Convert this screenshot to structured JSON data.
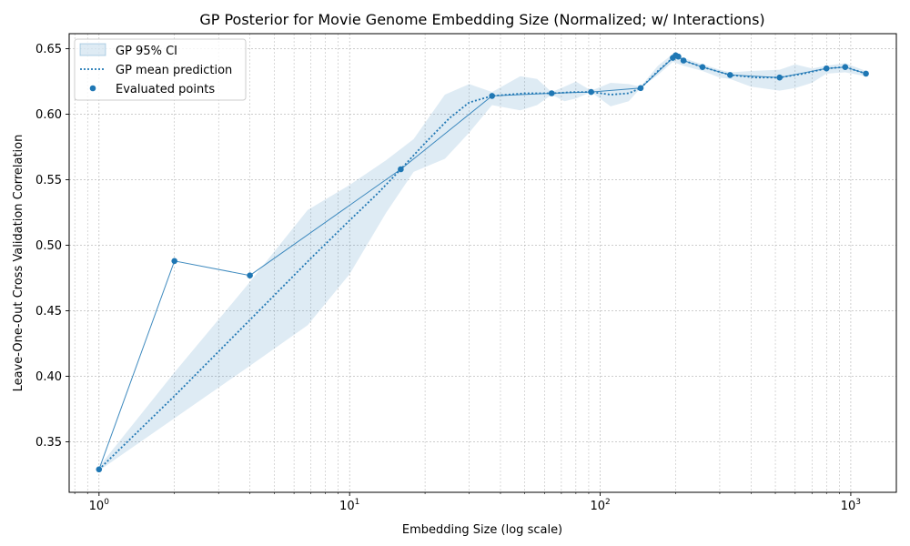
{
  "chart_data": {
    "type": "line",
    "title": "GP Posterior for Movie Genome Embedding Size (Normalized; w/ Interactions)",
    "xlabel": "Embedding Size (log scale)",
    "ylabel": "Leave-One-Out Cross Validation Correlation",
    "xscale": "log",
    "xlim": [
      0.76,
      1520
    ],
    "ylim": [
      0.3115,
      0.6615
    ],
    "x_major_ticks": [
      1,
      10,
      100,
      1000
    ],
    "x_tick_labels": [
      {
        "base": "10",
        "exp": "0"
      },
      {
        "base": "10",
        "exp": "1"
      },
      {
        "base": "10",
        "exp": "2"
      },
      {
        "base": "10",
        "exp": "3"
      }
    ],
    "y_ticks": [
      0.35,
      0.4,
      0.45,
      0.5,
      0.55,
      0.6,
      0.65
    ],
    "y_tick_labels": [
      "0.35",
      "0.40",
      "0.45",
      "0.50",
      "0.55",
      "0.60",
      "0.65"
    ],
    "grid": true,
    "legend_position": "top-left",
    "legend": {
      "ci": "GP 95% CI",
      "mean": "GP mean prediction",
      "points": "Evaluated points"
    },
    "colors": {
      "series": "#1f77b4",
      "ci_fill": "#1f77b4",
      "grid": "#b0b0b0"
    },
    "evaluated_points": {
      "x": [
        1,
        2,
        4,
        16,
        37,
        64,
        92,
        145,
        195,
        200,
        205,
        215,
        256,
        330,
        520,
        800,
        950,
        1150
      ],
      "y": [
        0.329,
        0.488,
        0.477,
        0.558,
        0.614,
        0.616,
        0.617,
        0.62,
        0.643,
        0.645,
        0.644,
        0.641,
        0.636,
        0.63,
        0.628,
        0.635,
        0.636,
        0.631
      ]
    },
    "gp_mean": {
      "x": [
        1,
        2,
        4,
        7,
        10,
        13,
        16,
        20,
        25,
        30,
        37,
        50,
        64,
        80,
        92,
        110,
        130,
        145,
        170,
        195,
        205,
        215,
        256,
        330,
        420,
        520,
        650,
        800,
        950,
        1150
      ],
      "y": [
        0.329,
        0.385,
        0.443,
        0.49,
        0.519,
        0.54,
        0.558,
        0.578,
        0.597,
        0.609,
        0.614,
        0.616,
        0.616,
        0.617,
        0.617,
        0.615,
        0.616,
        0.62,
        0.633,
        0.643,
        0.644,
        0.641,
        0.636,
        0.63,
        0.628,
        0.628,
        0.631,
        0.635,
        0.636,
        0.631
      ]
    },
    "gp_ci": {
      "x": [
        1,
        2,
        4,
        6.8,
        10,
        14,
        18,
        24,
        30,
        37,
        48,
        56,
        64,
        72,
        80,
        92,
        110,
        130,
        145,
        170,
        195,
        215,
        256,
        300,
        330,
        400,
        520,
        600,
        700,
        800,
        950,
        1150
      ],
      "lower": [
        0.328,
        0.368,
        0.408,
        0.439,
        0.478,
        0.525,
        0.556,
        0.566,
        0.586,
        0.607,
        0.603,
        0.607,
        0.615,
        0.61,
        0.612,
        0.617,
        0.606,
        0.61,
        0.62,
        0.63,
        0.64,
        0.637,
        0.633,
        0.628,
        0.627,
        0.621,
        0.618,
        0.62,
        0.624,
        0.631,
        0.632,
        0.629
      ],
      "upper": [
        0.331,
        0.403,
        0.472,
        0.527,
        0.546,
        0.565,
        0.581,
        0.615,
        0.623,
        0.617,
        0.629,
        0.627,
        0.617,
        0.621,
        0.625,
        0.618,
        0.624,
        0.623,
        0.621,
        0.637,
        0.646,
        0.643,
        0.638,
        0.634,
        0.632,
        0.633,
        0.634,
        0.638,
        0.635,
        0.637,
        0.639,
        0.633
      ]
    }
  }
}
